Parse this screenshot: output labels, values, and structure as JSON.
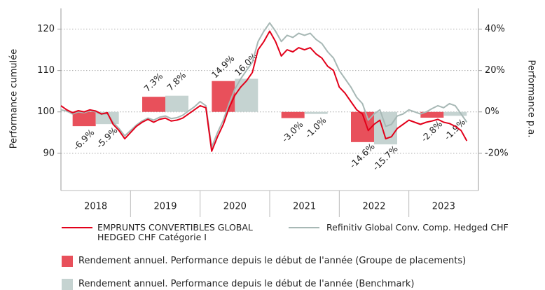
{
  "chart_data": {
    "type": "bar_line",
    "ylabel": "Performance cumulée",
    "y2label": "Performance p.a.",
    "categories": [
      "2018",
      "2019",
      "2020",
      "2021",
      "2022",
      "2023"
    ],
    "ylim": [
      81,
      125
    ],
    "yticks": [
      90,
      100,
      110,
      120
    ],
    "y2lim": [
      -38,
      50
    ],
    "y2ticks": [
      {
        "value": -20,
        "label": "-20%"
      },
      {
        "value": 0,
        "label": "0%"
      },
      {
        "value": 20,
        "label": "20%"
      },
      {
        "value": 40,
        "label": "40%"
      }
    ],
    "grid": true,
    "bar_series": [
      {
        "name": "Rendement annuel. Performance depuis le début de l'année (Groupe de placements)",
        "color": "#e8505b",
        "axis": "y2",
        "values": [
          -6.9,
          7.3,
          14.9,
          -3.0,
          -14.6,
          -2.8
        ],
        "value_labels": [
          "-6.9%",
          "7.3%",
          "14.9%",
          "-3.0%",
          "-14.6%",
          "-2.8%"
        ]
      },
      {
        "name": "Rendement annuel. Performance depuis le début de l'année (Benchmark)",
        "color": "#c5d3d1",
        "axis": "y2",
        "values": [
          -5.9,
          7.8,
          16.0,
          -1.0,
          -15.7,
          -1.9
        ],
        "value_labels": [
          "-5.9%",
          "7.8%",
          "16.0%",
          "-1.0%",
          "-15.7%",
          "-1.9%"
        ]
      }
    ],
    "line_series": [
      {
        "name": "EMPRUNTS CONVERTIBLES GLOBAL\nHEDGED CHF Catégorie I",
        "color": "#e2001a",
        "values": [
          101.5,
          100.5,
          99.8,
          100.3,
          100.0,
          100.5,
          100.2,
          99.5,
          99.8,
          97.0,
          95.5,
          93.5,
          95,
          96.5,
          97.5,
          98.2,
          97.5,
          98.2,
          98.5,
          97.8,
          98.0,
          98.5,
          99.5,
          100.5,
          101.5,
          101,
          90.5,
          94,
          97,
          101,
          104,
          106,
          107.5,
          109.5,
          115,
          117,
          119.5,
          117,
          113.5,
          115,
          114.5,
          115.5,
          115,
          115.5,
          114,
          113,
          111,
          110,
          106,
          104.5,
          102.5,
          100.5,
          99.5,
          95.5,
          97,
          98,
          93.5,
          94,
          96,
          97,
          98,
          97.5,
          97,
          97.5,
          97.8,
          98.2,
          97.5,
          97.2,
          96.5,
          95.5,
          93
        ]
      },
      {
        "name": "Refinitiv Global Conv. Comp. Hedged CHF",
        "color": "#a7b8b5",
        "values": [
          100.5,
          100.2,
          99.5,
          100,
          99.8,
          100.3,
          100,
          99.4,
          99.6,
          97.5,
          96,
          94.2,
          95.5,
          96.8,
          97.8,
          98.5,
          98,
          98.7,
          99,
          98.4,
          98.6,
          99.2,
          100.2,
          101.2,
          102.5,
          101.5,
          91.5,
          95,
          98,
          102,
          105.5,
          108,
          110,
          112,
          117,
          119.5,
          121.5,
          119.5,
          117,
          118.5,
          118,
          119,
          118.5,
          119,
          117.5,
          116.5,
          114.5,
          113,
          110,
          108,
          106,
          103.5,
          102,
          98,
          99.5,
          100.5,
          96.5,
          97,
          99,
          99.5,
          100.5,
          100,
          99.5,
          100,
          100.8,
          101.5,
          101,
          102,
          101.5,
          99.5,
          97.5
        ]
      }
    ]
  }
}
